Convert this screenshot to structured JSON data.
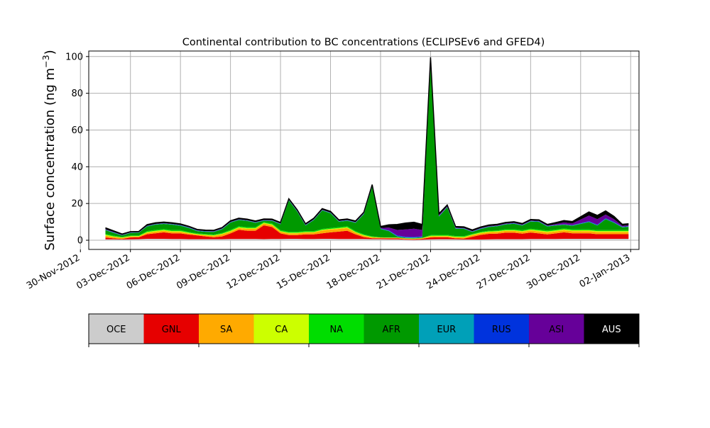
{
  "chart_data": {
    "type": "area",
    "title": "Continental contribution to BC concentrations (ECLIPSEv6 and GFED4)",
    "ylabel": "Surface concentration (ng m",
    "ylabel_sup": "−3",
    "ylabel_close": ")",
    "xlabel": "",
    "xlim": [
      "2012-11-30T12:00",
      "2013-01-02T12:00"
    ],
    "ylim": [
      -5,
      103
    ],
    "grid": true,
    "stacked": true,
    "y_ticks": [
      0,
      20,
      40,
      60,
      80,
      100
    ],
    "x_ticks": [
      "30-Nov-2012",
      "03-Dec-2012",
      "06-Dec-2012",
      "09-Dec-2012",
      "12-Dec-2012",
      "15-Dec-2012",
      "18-Dec-2012",
      "21-Dec-2012",
      "24-Dec-2012",
      "27-Dec-2012",
      "30-Dec-2012",
      "02-Jan-2013"
    ],
    "x_tick_dates": [
      "2012-11-30",
      "2012-12-03",
      "2012-12-06",
      "2012-12-09",
      "2012-12-12",
      "2012-12-15",
      "2012-12-18",
      "2012-12-21",
      "2012-12-24",
      "2012-12-27",
      "2012-12-30",
      "2013-01-02"
    ],
    "x": [
      "2012-12-01T12:00",
      "2012-12-02",
      "2012-12-02T12:00",
      "2012-12-03",
      "2012-12-03T12:00",
      "2012-12-04",
      "2012-12-04T12:00",
      "2012-12-05",
      "2012-12-05T12:00",
      "2012-12-06",
      "2012-12-06T12:00",
      "2012-12-07",
      "2012-12-07T12:00",
      "2012-12-08",
      "2012-12-08T12:00",
      "2012-12-09",
      "2012-12-09T12:00",
      "2012-12-10",
      "2012-12-10T12:00",
      "2012-12-11",
      "2012-12-11T12:00",
      "2012-12-12",
      "2012-12-12T12:00",
      "2012-12-13",
      "2012-12-13T12:00",
      "2012-12-14",
      "2012-12-14T12:00",
      "2012-12-15",
      "2012-12-15T12:00",
      "2012-12-16",
      "2012-12-16T12:00",
      "2012-12-17",
      "2012-12-17T12:00",
      "2012-12-18",
      "2012-12-18T12:00",
      "2012-12-19",
      "2012-12-19T12:00",
      "2012-12-20",
      "2012-12-20T12:00",
      "2012-12-21",
      "2012-12-21T12:00",
      "2012-12-22",
      "2012-12-22T12:00",
      "2012-12-23",
      "2012-12-23T12:00",
      "2012-12-24",
      "2012-12-24T12:00",
      "2012-12-25",
      "2012-12-25T12:00",
      "2012-12-26",
      "2012-12-26T12:00",
      "2012-12-27",
      "2012-12-27T12:00",
      "2012-12-28",
      "2012-12-28T12:00",
      "2012-12-29",
      "2012-12-29T12:00",
      "2012-12-30",
      "2012-12-30T12:00",
      "2012-12-31",
      "2012-12-31T12:00",
      "2013-01-01",
      "2013-01-01T12:00",
      "2013-01-01T21:00"
    ],
    "series": [
      {
        "name": "OCE",
        "color": "#cccccc",
        "values": [
          0.5,
          0.5,
          0.4,
          0.5,
          0.6,
          0.8,
          0.8,
          0.8,
          0.7,
          0.7,
          0.6,
          0.6,
          0.6,
          0.6,
          0.6,
          0.7,
          0.7,
          0.7,
          0.7,
          0.6,
          0.7,
          0.7,
          0.8,
          0.8,
          0.7,
          0.7,
          0.8,
          0.8,
          0.7,
          0.7,
          0.7,
          0.7,
          0.6,
          0.6,
          0.5,
          0.5,
          0.3,
          0.2,
          0.3,
          0.5,
          0.6,
          0.6,
          0.5,
          0.4,
          0.4,
          0.4,
          0.5,
          0.6,
          0.6,
          0.6,
          0.6,
          0.7,
          0.7,
          0.7,
          0.7,
          0.8,
          0.8,
          0.8,
          0.8,
          0.8,
          0.8,
          0.8,
          0.8,
          0.8
        ]
      },
      {
        "name": "GNL",
        "color": "#e60000",
        "values": [
          1.0,
          0.5,
          0.3,
          1.0,
          1.0,
          2.5,
          3.0,
          3.5,
          3.0,
          3.0,
          2.5,
          2.0,
          1.5,
          1.0,
          1.5,
          3.0,
          5.0,
          4.5,
          4.5,
          7.5,
          6.5,
          3.0,
          2.0,
          2.0,
          2.5,
          2.5,
          3.0,
          3.5,
          4.0,
          4.5,
          2.5,
          1.0,
          0.5,
          0.5,
          0.5,
          0.5,
          0.3,
          0.3,
          0.5,
          1.0,
          1.0,
          1.0,
          0.5,
          0.5,
          1.5,
          2.5,
          3.0,
          3.0,
          3.5,
          3.5,
          3.0,
          3.5,
          3.0,
          2.5,
          3.0,
          3.5,
          3.0,
          3.0,
          3.0,
          2.5,
          2.5,
          2.5,
          2.5,
          2.5
        ]
      },
      {
        "name": "SA",
        "color": "#ffaa00",
        "values": [
          1.0,
          0.8,
          0.6,
          0.6,
          0.5,
          0.8,
          0.9,
          0.9,
          0.9,
          0.9,
          0.7,
          0.5,
          0.6,
          0.8,
          1.2,
          1.0,
          1.0,
          1.0,
          1.0,
          1.0,
          1.0,
          1.0,
          1.0,
          1.0,
          1.0,
          1.0,
          1.5,
          1.5,
          1.5,
          1.5,
          1.0,
          0.8,
          0.5,
          0.3,
          0.3,
          0.3,
          0.3,
          0.3,
          0.3,
          0.6,
          0.6,
          0.6,
          0.6,
          0.6,
          0.9,
          0.9,
          0.9,
          0.9,
          1.0,
          1.0,
          1.0,
          1.1,
          1.1,
          1.1,
          1.1,
          1.1,
          1.1,
          1.1,
          1.1,
          1.2,
          1.2,
          1.2,
          1.2,
          1.2
        ]
      },
      {
        "name": "CA",
        "color": "#ccff00",
        "values": [
          0.5,
          0.3,
          0.2,
          0.2,
          0.2,
          0.4,
          0.4,
          0.4,
          0.4,
          0.4,
          0.3,
          0.3,
          0.3,
          0.3,
          0.3,
          0.4,
          0.4,
          0.4,
          0.4,
          0.4,
          0.4,
          0.3,
          0.3,
          0.3,
          0.3,
          0.3,
          0.4,
          0.4,
          0.4,
          0.4,
          0.3,
          0.3,
          0.2,
          0.1,
          0.1,
          0.1,
          0.1,
          0.1,
          0.1,
          0.3,
          0.3,
          0.3,
          0.3,
          0.3,
          0.3,
          0.4,
          0.4,
          0.4,
          0.4,
          0.4,
          0.4,
          0.5,
          0.5,
          0.5,
          0.5,
          0.5,
          0.5,
          0.5,
          0.5,
          0.5,
          0.5,
          0.5,
          0.5,
          0.5
        ]
      },
      {
        "name": "NA",
        "color": "#00dd00",
        "values": [
          0.5,
          0.4,
          0.3,
          0.3,
          0.3,
          0.5,
          0.5,
          0.5,
          0.5,
          0.5,
          0.4,
          0.4,
          0.4,
          0.4,
          0.4,
          0.5,
          0.5,
          0.5,
          0.5,
          0.5,
          0.5,
          0.5,
          0.5,
          0.5,
          0.5,
          0.5,
          0.5,
          0.5,
          0.5,
          0.5,
          0.5,
          0.4,
          0.3,
          0.1,
          0.1,
          0.1,
          0.1,
          0.1,
          0.1,
          0.4,
          0.4,
          0.4,
          0.4,
          0.4,
          0.4,
          0.4,
          0.4,
          0.4,
          0.5,
          0.5,
          0.5,
          0.5,
          0.5,
          0.5,
          0.5,
          0.5,
          0.5,
          0.5,
          0.5,
          0.5,
          0.5,
          0.5,
          0.5,
          0.5
        ]
      },
      {
        "name": "AFR",
        "color": "#009900",
        "values": [
          2.0,
          1.5,
          0.8,
          1.4,
          1.5,
          2.5,
          2.9,
          2.8,
          3.0,
          2.4,
          2.2,
          1.2,
          1.2,
          1.4,
          2.0,
          4.0,
          3.4,
          3.4,
          2.4,
          0.6,
          1.4,
          3.2,
          17.0,
          11.0,
          3.0,
          6.0,
          10.0,
          8.0,
          3.0,
          3.0,
          4.5,
          11.0,
          27.0,
          4.5,
          3.5,
          0.5,
          0.2,
          0.2,
          0.2,
          95.0,
          10.0,
          15.0,
          4.0,
          4.0,
          1.0,
          1.5,
          2.0,
          2.3,
          2.6,
          3.0,
          2.5,
          3.9,
          4.2,
          2.2,
          2.2,
          2.0,
          2.0,
          3.0,
          4.0,
          2.5,
          6.0,
          4.0,
          1.5,
          1.8
        ]
      },
      {
        "name": "EUR",
        "color": "#00a0b8",
        "values": [
          0.2,
          0.2,
          0.1,
          0.1,
          0.1,
          0.2,
          0.2,
          0.2,
          0.2,
          0.2,
          0.2,
          0.2,
          0.2,
          0.2,
          0.2,
          0.2,
          0.2,
          0.2,
          0.2,
          0.2,
          0.2,
          0.2,
          0.2,
          0.2,
          0.2,
          0.2,
          0.2,
          0.2,
          0.2,
          0.2,
          0.2,
          0.2,
          0.2,
          0.2,
          0.2,
          0.3,
          0.3,
          0.3,
          0.3,
          0.2,
          0.2,
          0.2,
          0.2,
          0.2,
          0.2,
          0.2,
          0.2,
          0.2,
          0.2,
          0.2,
          0.2,
          0.2,
          0.2,
          0.2,
          0.2,
          0.2,
          0.2,
          0.2,
          0.2,
          0.2,
          0.2,
          0.2,
          0.2,
          0.2
        ]
      },
      {
        "name": "RUS",
        "color": "#0033dd",
        "values": [
          0.1,
          0.1,
          0.1,
          0.1,
          0.1,
          0.1,
          0.1,
          0.1,
          0.1,
          0.1,
          0.1,
          0.1,
          0.1,
          0.1,
          0.1,
          0.1,
          0.1,
          0.1,
          0.1,
          0.1,
          0.1,
          0.1,
          0.1,
          0.1,
          0.1,
          0.1,
          0.1,
          0.1,
          0.1,
          0.1,
          0.1,
          0.1,
          0.1,
          0.1,
          0.2,
          0.3,
          0.3,
          0.3,
          0.3,
          0.1,
          0.1,
          0.1,
          0.1,
          0.1,
          0.1,
          0.1,
          0.1,
          0.1,
          0.1,
          0.1,
          0.1,
          0.1,
          0.1,
          0.1,
          0.1,
          0.1,
          0.1,
          0.2,
          0.3,
          0.3,
          0.3,
          0.3,
          0.2,
          0.2
        ]
      },
      {
        "name": "ASI",
        "color": "#660099",
        "values": [
          0.2,
          0.2,
          0.1,
          0.1,
          0.1,
          0.1,
          0.1,
          0.1,
          0.1,
          0.1,
          0.1,
          0.1,
          0.1,
          0.1,
          0.1,
          0.1,
          0.1,
          0.1,
          0.1,
          0.1,
          0.1,
          0.1,
          0.1,
          0.1,
          0.1,
          0.1,
          0.1,
          0.1,
          0.1,
          0.1,
          0.1,
          0.2,
          0.3,
          0.3,
          1.5,
          3.0,
          4.0,
          4.5,
          3.5,
          0.5,
          0.5,
          0.3,
          0.3,
          0.2,
          0.2,
          0.2,
          0.2,
          0.2,
          0.2,
          0.2,
          0.2,
          0.2,
          0.2,
          0.2,
          0.5,
          1.0,
          1.0,
          2.0,
          3.0,
          3.0,
          2.0,
          1.5,
          0.5,
          0.5
        ]
      },
      {
        "name": "AUS",
        "color": "#000000",
        "values": [
          0.8,
          0.6,
          0.5,
          0.4,
          0.4,
          0.6,
          0.6,
          0.6,
          0.6,
          0.6,
          0.5,
          0.5,
          0.5,
          0.5,
          0.5,
          0.6,
          0.6,
          0.6,
          0.6,
          0.6,
          0.6,
          0.6,
          0.6,
          0.6,
          0.6,
          0.6,
          0.6,
          0.6,
          0.6,
          0.6,
          0.6,
          0.6,
          0.6,
          0.8,
          1.5,
          3.0,
          3.5,
          3.5,
          3.0,
          1.0,
          0.8,
          0.7,
          0.6,
          0.6,
          0.6,
          0.6,
          0.6,
          0.6,
          0.6,
          0.6,
          0.6,
          0.6,
          0.6,
          0.6,
          0.8,
          1.0,
          1.0,
          1.5,
          2.0,
          2.0,
          2.0,
          1.5,
          0.8,
          0.8
        ]
      }
    ]
  }
}
